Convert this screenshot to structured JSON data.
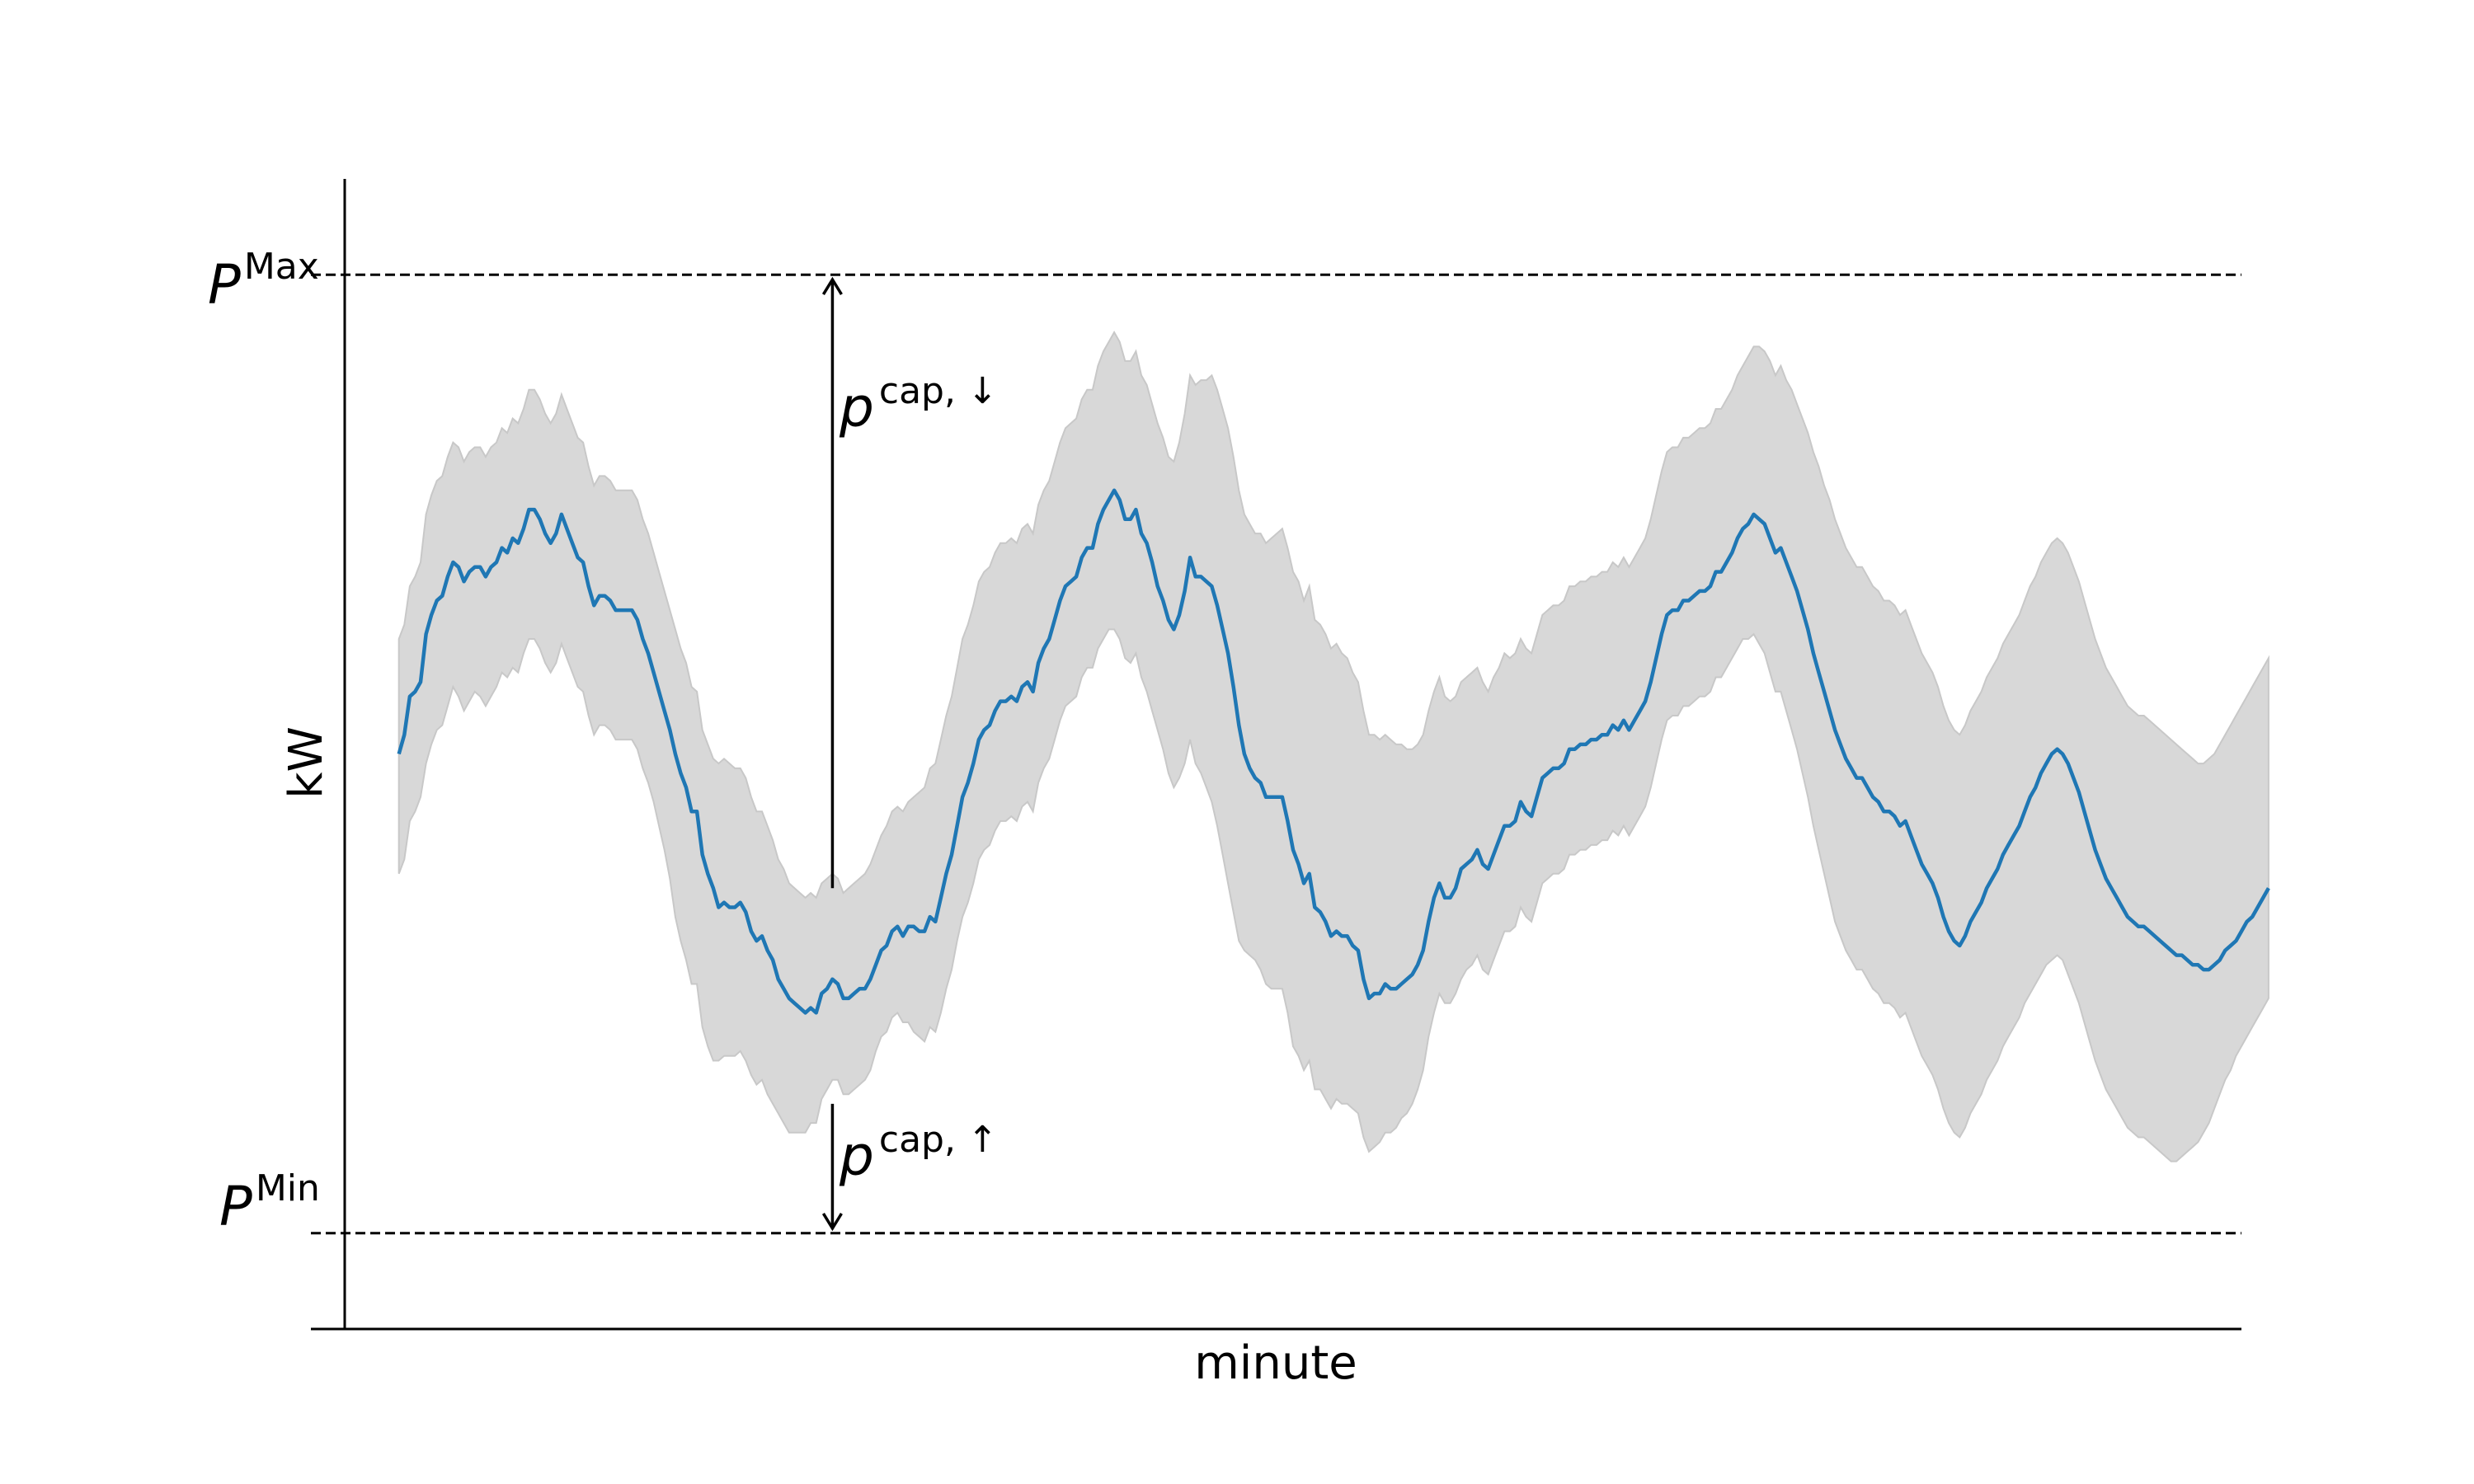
{
  "chart_data": {
    "type": "area",
    "title": "",
    "xlabel": "minute",
    "ylabel": "kW",
    "xlim": [
      -10,
      340
    ],
    "ylim": [
      -1.2,
      1.2
    ],
    "grid": false,
    "legend": "none",
    "colors": {
      "line": "#1f77b4",
      "band": "#d8d8d8",
      "band_edge": "#c8c8c8",
      "reference": "#000000"
    },
    "reference_lines": [
      {
        "name": "max",
        "label_base": "P",
        "label_sup": "Max",
        "y": 1.0
      },
      {
        "name": "min",
        "label_base": "P",
        "label_sup": "Min",
        "y": -1.0
      }
    ],
    "annotations": [
      {
        "name": "cap-down",
        "label_base": "p",
        "label_sup": "cap, ↓",
        "x": 80,
        "y_from": -0.28,
        "y_to": 0.99,
        "direction": "up"
      },
      {
        "name": "cap-up",
        "label_base": "p",
        "label_sup": "cap, ↑",
        "x": 80,
        "y_from": -0.73,
        "y_to": -0.99,
        "direction": "down"
      }
    ],
    "series": {
      "x_start": 0,
      "x_step": 1,
      "mean": [
        0.0,
        0.04,
        0.12,
        0.13,
        0.15,
        0.25,
        0.29,
        0.32,
        0.33,
        0.37,
        0.4,
        0.39,
        0.36,
        0.38,
        0.39,
        0.39,
        0.37,
        0.39,
        0.4,
        0.43,
        0.42,
        0.45,
        0.44,
        0.47,
        0.51,
        0.51,
        0.49,
        0.46,
        0.44,
        0.46,
        0.5,
        0.47,
        0.44,
        0.41,
        0.4,
        0.35,
        0.31,
        0.33,
        0.33,
        0.32,
        0.3,
        0.3,
        0.3,
        0.3,
        0.28,
        0.24,
        0.21,
        0.17,
        0.13,
        0.09,
        0.05,
        0.0,
        -0.04,
        -0.07,
        -0.12,
        -0.12,
        -0.21,
        -0.25,
        -0.28,
        -0.32,
        -0.31,
        -0.32,
        -0.32,
        -0.31,
        -0.33,
        -0.37,
        -0.39,
        -0.38,
        -0.41,
        -0.43,
        -0.47,
        -0.49,
        -0.51,
        -0.52,
        -0.53,
        -0.54,
        -0.53,
        -0.54,
        -0.5,
        -0.49,
        -0.47,
        -0.48,
        -0.51,
        -0.51,
        -0.5,
        -0.49,
        -0.49,
        -0.47,
        -0.44,
        -0.41,
        -0.4,
        -0.37,
        -0.36,
        -0.38,
        -0.36,
        -0.36,
        -0.37,
        -0.37,
        -0.34,
        -0.35,
        -0.3,
        -0.25,
        -0.21,
        -0.15,
        -0.09,
        -0.06,
        -0.02,
        0.03,
        0.05,
        0.06,
        0.09,
        0.11,
        0.11,
        0.12,
        0.11,
        0.14,
        0.15,
        0.13,
        0.19,
        0.22,
        0.24,
        0.28,
        0.32,
        0.35,
        0.36,
        0.37,
        0.41,
        0.43,
        0.43,
        0.48,
        0.51,
        0.53,
        0.55,
        0.53,
        0.49,
        0.49,
        0.51,
        0.46,
        0.44,
        0.4,
        0.35,
        0.32,
        0.28,
        0.26,
        0.29,
        0.34,
        0.41,
        0.37,
        0.37,
        0.36,
        0.35,
        0.31,
        0.26,
        0.21,
        0.14,
        0.06,
        0.0,
        -0.03,
        -0.05,
        -0.06,
        -0.09,
        -0.09,
        -0.09,
        -0.09,
        -0.14,
        -0.2,
        -0.23,
        -0.27,
        -0.25,
        -0.32,
        -0.33,
        -0.35,
        -0.38,
        -0.37,
        -0.38,
        -0.38,
        -0.4,
        -0.41,
        -0.47,
        -0.51,
        -0.5,
        -0.5,
        -0.48,
        -0.49,
        -0.49,
        -0.48,
        -0.47,
        -0.46,
        -0.44,
        -0.41,
        -0.35,
        -0.3,
        -0.27,
        -0.3,
        -0.3,
        -0.28,
        -0.24,
        -0.23,
        -0.22,
        -0.2,
        -0.23,
        -0.24,
        -0.21,
        -0.18,
        -0.15,
        -0.15,
        -0.14,
        -0.1,
        -0.12,
        -0.13,
        -0.09,
        -0.05,
        -0.04,
        -0.03,
        -0.03,
        -0.02,
        0.01,
        0.01,
        0.02,
        0.02,
        0.03,
        0.03,
        0.04,
        0.04,
        0.06,
        0.05,
        0.07,
        0.05,
        0.07,
        0.09,
        0.11,
        0.15,
        0.2,
        0.25,
        0.29,
        0.3,
        0.3,
        0.32,
        0.32,
        0.33,
        0.34,
        0.34,
        0.35,
        0.38,
        0.38,
        0.4,
        0.42,
        0.45,
        0.47,
        0.48,
        0.5,
        0.49,
        0.48,
        0.45,
        0.42,
        0.43,
        0.4,
        0.37,
        0.34,
        0.3,
        0.26,
        0.21,
        0.17,
        0.13,
        0.09,
        0.05,
        0.02,
        -0.01,
        -0.03,
        -0.05,
        -0.05,
        -0.07,
        -0.09,
        -0.1,
        -0.12,
        -0.12,
        -0.13,
        -0.15,
        -0.14,
        -0.17,
        -0.2,
        -0.23,
        -0.25,
        -0.27,
        -0.3,
        -0.34,
        -0.37,
        -0.39,
        -0.4,
        -0.38,
        -0.35,
        -0.33,
        -0.31,
        -0.28,
        -0.26,
        -0.24,
        -0.21,
        -0.19,
        -0.17,
        -0.15,
        -0.12,
        -0.09,
        -0.07,
        -0.04,
        -0.02,
        0.0,
        0.01,
        0.0,
        -0.02,
        -0.05,
        -0.08,
        -0.12,
        -0.16,
        -0.2,
        -0.23,
        -0.26,
        -0.28,
        -0.3,
        -0.32,
        -0.34,
        -0.35,
        -0.36,
        -0.36,
        -0.37,
        -0.38,
        -0.39,
        -0.4,
        -0.41,
        -0.42,
        -0.42,
        -0.43,
        -0.44,
        -0.44,
        -0.45,
        -0.45,
        -0.44,
        -0.43,
        -0.41,
        -0.4,
        -0.39,
        -0.37,
        -0.35,
        -0.34,
        -0.32,
        -0.3,
        -0.28
      ],
      "lower": [
        -0.25,
        -0.22,
        -0.14,
        -0.12,
        -0.09,
        -0.02,
        0.02,
        0.05,
        0.06,
        0.1,
        0.14,
        0.12,
        0.09,
        0.11,
        0.13,
        0.12,
        0.1,
        0.12,
        0.14,
        0.17,
        0.16,
        0.18,
        0.17,
        0.21,
        0.24,
        0.24,
        0.22,
        0.19,
        0.17,
        0.19,
        0.23,
        0.2,
        0.17,
        0.14,
        0.13,
        0.08,
        0.04,
        0.06,
        0.06,
        0.05,
        0.03,
        0.03,
        0.03,
        0.03,
        0.01,
        -0.03,
        -0.06,
        -0.1,
        -0.15,
        -0.2,
        -0.26,
        -0.34,
        -0.39,
        -0.43,
        -0.48,
        -0.48,
        -0.57,
        -0.61,
        -0.64,
        -0.64,
        -0.63,
        -0.63,
        -0.63,
        -0.62,
        -0.64,
        -0.67,
        -0.69,
        -0.68,
        -0.71,
        -0.73,
        -0.75,
        -0.77,
        -0.79,
        -0.79,
        -0.79,
        -0.79,
        -0.77,
        -0.77,
        -0.72,
        -0.7,
        -0.68,
        -0.68,
        -0.71,
        -0.71,
        -0.7,
        -0.69,
        -0.68,
        -0.66,
        -0.62,
        -0.59,
        -0.58,
        -0.55,
        -0.54,
        -0.56,
        -0.56,
        -0.58,
        -0.59,
        -0.6,
        -0.57,
        -0.58,
        -0.54,
        -0.49,
        -0.45,
        -0.39,
        -0.34,
        -0.31,
        -0.27,
        -0.22,
        -0.2,
        -0.19,
        -0.16,
        -0.14,
        -0.14,
        -0.13,
        -0.14,
        -0.11,
        -0.1,
        -0.12,
        -0.06,
        -0.03,
        -0.01,
        0.03,
        0.07,
        0.1,
        0.11,
        0.12,
        0.16,
        0.18,
        0.18,
        0.22,
        0.24,
        0.26,
        0.26,
        0.24,
        0.2,
        0.19,
        0.21,
        0.16,
        0.13,
        0.09,
        0.05,
        0.01,
        -0.04,
        -0.07,
        -0.05,
        -0.02,
        0.03,
        -0.02,
        -0.04,
        -0.07,
        -0.1,
        -0.15,
        -0.21,
        -0.27,
        -0.33,
        -0.39,
        -0.41,
        -0.42,
        -0.43,
        -0.45,
        -0.48,
        -0.49,
        -0.49,
        -0.49,
        -0.54,
        -0.61,
        -0.63,
        -0.66,
        -0.64,
        -0.7,
        -0.7,
        -0.72,
        -0.74,
        -0.72,
        -0.73,
        -0.73,
        -0.74,
        -0.75,
        -0.8,
        -0.83,
        -0.82,
        -0.81,
        -0.79,
        -0.79,
        -0.78,
        -0.76,
        -0.75,
        -0.73,
        -0.7,
        -0.66,
        -0.59,
        -0.54,
        -0.5,
        -0.52,
        -0.52,
        -0.5,
        -0.47,
        -0.45,
        -0.44,
        -0.42,
        -0.45,
        -0.46,
        -0.43,
        -0.4,
        -0.37,
        -0.37,
        -0.36,
        -0.32,
        -0.34,
        -0.35,
        -0.31,
        -0.27,
        -0.26,
        -0.25,
        -0.25,
        -0.24,
        -0.21,
        -0.21,
        -0.2,
        -0.2,
        -0.19,
        -0.19,
        -0.18,
        -0.18,
        -0.16,
        -0.17,
        -0.15,
        -0.17,
        -0.15,
        -0.13,
        -0.11,
        -0.07,
        -0.02,
        0.03,
        0.07,
        0.08,
        0.08,
        0.1,
        0.1,
        0.11,
        0.12,
        0.12,
        0.13,
        0.16,
        0.16,
        0.18,
        0.2,
        0.22,
        0.24,
        0.24,
        0.25,
        0.23,
        0.21,
        0.17,
        0.13,
        0.13,
        0.09,
        0.05,
        0.01,
        -0.04,
        -0.09,
        -0.15,
        -0.2,
        -0.25,
        -0.3,
        -0.35,
        -0.38,
        -0.41,
        -0.43,
        -0.45,
        -0.45,
        -0.47,
        -0.49,
        -0.5,
        -0.52,
        -0.52,
        -0.53,
        -0.55,
        -0.54,
        -0.57,
        -0.6,
        -0.63,
        -0.65,
        -0.67,
        -0.7,
        -0.74,
        -0.77,
        -0.79,
        -0.8,
        -0.78,
        -0.75,
        -0.73,
        -0.71,
        -0.68,
        -0.66,
        -0.64,
        -0.61,
        -0.59,
        -0.57,
        -0.55,
        -0.52,
        -0.5,
        -0.48,
        -0.46,
        -0.44,
        -0.43,
        -0.42,
        -0.43,
        -0.46,
        -0.49,
        -0.52,
        -0.56,
        -0.6,
        -0.64,
        -0.67,
        -0.7,
        -0.72,
        -0.74,
        -0.76,
        -0.78,
        -0.79,
        -0.8,
        -0.8,
        -0.81,
        -0.82,
        -0.83,
        -0.84,
        -0.85,
        -0.85,
        -0.84,
        -0.83,
        -0.82,
        -0.81,
        -0.79,
        -0.77,
        -0.74,
        -0.71,
        -0.68,
        -0.66,
        -0.63,
        -0.61,
        -0.59,
        -0.57,
        -0.55,
        -0.53,
        -0.51
      ],
      "upper": [
        0.24,
        0.27,
        0.35,
        0.37,
        0.4,
        0.5,
        0.54,
        0.57,
        0.58,
        0.62,
        0.65,
        0.64,
        0.61,
        0.63,
        0.64,
        0.64,
        0.62,
        0.64,
        0.65,
        0.68,
        0.67,
        0.7,
        0.69,
        0.72,
        0.76,
        0.76,
        0.74,
        0.71,
        0.69,
        0.71,
        0.75,
        0.72,
        0.69,
        0.66,
        0.65,
        0.6,
        0.56,
        0.58,
        0.58,
        0.57,
        0.55,
        0.55,
        0.55,
        0.55,
        0.53,
        0.49,
        0.46,
        0.42,
        0.38,
        0.34,
        0.3,
        0.26,
        0.22,
        0.19,
        0.14,
        0.13,
        0.05,
        0.02,
        -0.01,
        -0.02,
        -0.01,
        -0.02,
        -0.03,
        -0.03,
        -0.05,
        -0.09,
        -0.12,
        -0.12,
        -0.15,
        -0.18,
        -0.22,
        -0.24,
        -0.27,
        -0.28,
        -0.29,
        -0.3,
        -0.29,
        -0.3,
        -0.27,
        -0.26,
        -0.25,
        -0.26,
        -0.29,
        -0.28,
        -0.27,
        -0.26,
        -0.25,
        -0.23,
        -0.2,
        -0.17,
        -0.15,
        -0.12,
        -0.11,
        -0.12,
        -0.1,
        -0.09,
        -0.08,
        -0.07,
        -0.03,
        -0.02,
        0.03,
        0.08,
        0.12,
        0.18,
        0.24,
        0.27,
        0.31,
        0.36,
        0.38,
        0.39,
        0.42,
        0.44,
        0.44,
        0.45,
        0.44,
        0.47,
        0.48,
        0.46,
        0.52,
        0.55,
        0.57,
        0.61,
        0.65,
        0.68,
        0.69,
        0.7,
        0.74,
        0.76,
        0.76,
        0.81,
        0.84,
        0.86,
        0.88,
        0.86,
        0.82,
        0.82,
        0.84,
        0.79,
        0.77,
        0.73,
        0.69,
        0.66,
        0.62,
        0.61,
        0.65,
        0.71,
        0.79,
        0.77,
        0.78,
        0.78,
        0.79,
        0.76,
        0.72,
        0.68,
        0.62,
        0.55,
        0.5,
        0.48,
        0.46,
        0.46,
        0.44,
        0.45,
        0.46,
        0.47,
        0.43,
        0.38,
        0.36,
        0.32,
        0.35,
        0.28,
        0.27,
        0.25,
        0.22,
        0.23,
        0.21,
        0.2,
        0.17,
        0.15,
        0.09,
        0.04,
        0.04,
        0.03,
        0.04,
        0.03,
        0.02,
        0.02,
        0.01,
        0.01,
        0.02,
        0.04,
        0.09,
        0.13,
        0.16,
        0.12,
        0.11,
        0.12,
        0.15,
        0.16,
        0.17,
        0.18,
        0.15,
        0.13,
        0.16,
        0.18,
        0.21,
        0.2,
        0.21,
        0.24,
        0.22,
        0.21,
        0.25,
        0.29,
        0.3,
        0.31,
        0.31,
        0.32,
        0.35,
        0.35,
        0.36,
        0.36,
        0.37,
        0.37,
        0.38,
        0.38,
        0.4,
        0.39,
        0.41,
        0.39,
        0.41,
        0.43,
        0.45,
        0.49,
        0.54,
        0.59,
        0.63,
        0.64,
        0.64,
        0.66,
        0.66,
        0.67,
        0.68,
        0.68,
        0.69,
        0.72,
        0.72,
        0.74,
        0.76,
        0.79,
        0.81,
        0.83,
        0.85,
        0.85,
        0.84,
        0.82,
        0.79,
        0.81,
        0.78,
        0.76,
        0.73,
        0.7,
        0.67,
        0.63,
        0.6,
        0.56,
        0.53,
        0.49,
        0.46,
        0.43,
        0.41,
        0.39,
        0.39,
        0.37,
        0.35,
        0.34,
        0.32,
        0.32,
        0.31,
        0.29,
        0.3,
        0.27,
        0.24,
        0.21,
        0.19,
        0.17,
        0.14,
        0.1,
        0.07,
        0.05,
        0.04,
        0.06,
        0.09,
        0.11,
        0.13,
        0.16,
        0.18,
        0.2,
        0.23,
        0.25,
        0.27,
        0.29,
        0.32,
        0.35,
        0.37,
        0.4,
        0.42,
        0.44,
        0.45,
        0.44,
        0.42,
        0.39,
        0.36,
        0.32,
        0.28,
        0.24,
        0.21,
        0.18,
        0.16,
        0.14,
        0.12,
        0.1,
        0.09,
        0.08,
        0.08,
        0.07,
        0.06,
        0.05,
        0.04,
        0.03,
        0.02,
        0.01,
        0.0,
        -0.01,
        -0.02,
        -0.02,
        -0.01,
        0.0,
        0.02,
        0.04,
        0.06,
        0.08,
        0.1,
        0.12,
        0.14,
        0.16,
        0.18,
        0.2
      ]
    }
  }
}
